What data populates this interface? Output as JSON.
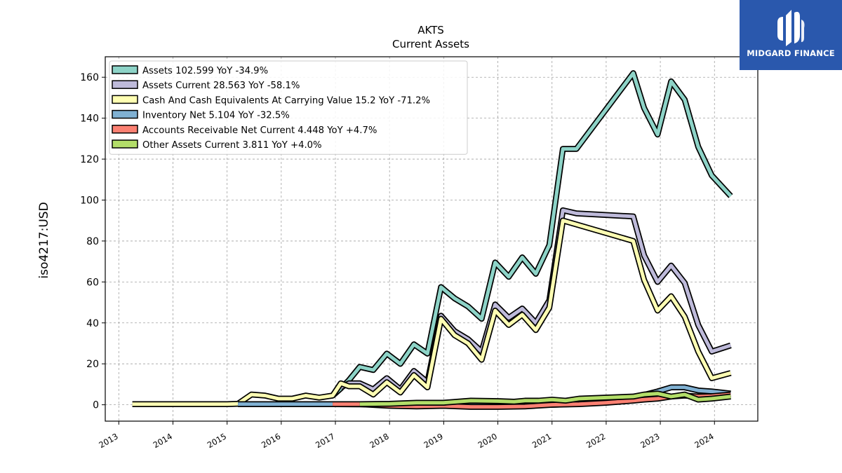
{
  "brand": {
    "name": "MIDGARD FINANCE",
    "bg": "#2a58ad"
  },
  "chart_data": {
    "type": "line",
    "title": "AKTS",
    "subtitle": "Current  Assets",
    "ylabel": "iso4217:USD",
    "xlabel": "",
    "xlim": [
      2012.75,
      2024.8
    ],
    "ylim": [
      -8,
      170
    ],
    "yticks": [
      0,
      20,
      40,
      60,
      80,
      100,
      120,
      140,
      160
    ],
    "xticks": [
      2013,
      2014,
      2015,
      2016,
      2017,
      2018,
      2019,
      2020,
      2021,
      2022,
      2023,
      2024
    ],
    "grid": true,
    "legend_position": "top-left",
    "series": [
      {
        "name": "Assets",
        "legend": "Assets  102.599 YoY -34.9%",
        "color": "#8dd3c7",
        "points": [
          [
            2016.95,
            4.5
          ],
          [
            2017.1,
            8
          ],
          [
            2017.25,
            12
          ],
          [
            2017.45,
            18.5
          ],
          [
            2017.7,
            17
          ],
          [
            2017.95,
            25
          ],
          [
            2018.2,
            20
          ],
          [
            2018.45,
            29.5
          ],
          [
            2018.7,
            25
          ],
          [
            2018.95,
            57.5
          ],
          [
            2019.2,
            52
          ],
          [
            2019.45,
            48
          ],
          [
            2019.7,
            42
          ],
          [
            2019.95,
            69.5
          ],
          [
            2020.2,
            62.5
          ],
          [
            2020.45,
            72
          ],
          [
            2020.7,
            64
          ],
          [
            2020.95,
            78
          ],
          [
            2021.2,
            125
          ],
          [
            2021.45,
            125
          ],
          [
            2022.5,
            162
          ],
          [
            2022.7,
            145
          ],
          [
            2022.95,
            132
          ],
          [
            2023.2,
            158
          ],
          [
            2023.45,
            149
          ],
          [
            2023.7,
            126
          ],
          [
            2023.95,
            112
          ],
          [
            2024.3,
            102
          ]
        ]
      },
      {
        "name": "Assets Current",
        "legend": "Assets Current  28.563 YoY -58.1%",
        "color": "#bebada",
        "points": [
          [
            2017.1,
            8.5
          ],
          [
            2017.25,
            10.5
          ],
          [
            2017.45,
            10.5
          ],
          [
            2017.7,
            7.5
          ],
          [
            2017.95,
            13
          ],
          [
            2018.2,
            7.5
          ],
          [
            2018.45,
            16.5
          ],
          [
            2018.7,
            11
          ],
          [
            2018.95,
            43.5
          ],
          [
            2019.2,
            36
          ],
          [
            2019.45,
            32
          ],
          [
            2019.7,
            26
          ],
          [
            2019.95,
            49
          ],
          [
            2020.2,
            42.5
          ],
          [
            2020.45,
            47
          ],
          [
            2020.7,
            40
          ],
          [
            2020.95,
            51
          ],
          [
            2021.2,
            95
          ],
          [
            2021.45,
            93.5
          ],
          [
            2022.5,
            92
          ],
          [
            2022.7,
            73
          ],
          [
            2022.95,
            60
          ],
          [
            2023.2,
            68
          ],
          [
            2023.45,
            59.5
          ],
          [
            2023.7,
            39
          ],
          [
            2023.95,
            26
          ],
          [
            2024.3,
            29
          ]
        ]
      },
      {
        "name": "Cash And Cash Equivalents At Carrying Value",
        "legend": "Cash And Cash Equivalents At Carrying Value  15.2 YoY -71.2%",
        "color": "#ffffb3",
        "points": [
          [
            2013.25,
            0.3
          ],
          [
            2015.0,
            0.3
          ],
          [
            2015.2,
            0.5
          ],
          [
            2015.45,
            5
          ],
          [
            2015.7,
            4.5
          ],
          [
            2015.95,
            3
          ],
          [
            2016.2,
            3
          ],
          [
            2016.45,
            4.5
          ],
          [
            2016.7,
            3.5
          ],
          [
            2016.95,
            4.5
          ],
          [
            2017.1,
            10.5
          ],
          [
            2017.25,
            9
          ],
          [
            2017.45,
            9
          ],
          [
            2017.7,
            5
          ],
          [
            2017.95,
            11
          ],
          [
            2018.2,
            6
          ],
          [
            2018.45,
            14.5
          ],
          [
            2018.7,
            8.5
          ],
          [
            2018.95,
            42
          ],
          [
            2019.2,
            34
          ],
          [
            2019.45,
            30
          ],
          [
            2019.7,
            22
          ],
          [
            2019.95,
            46
          ],
          [
            2020.2,
            39
          ],
          [
            2020.45,
            44
          ],
          [
            2020.7,
            36.5
          ],
          [
            2020.95,
            47.5
          ],
          [
            2021.2,
            90
          ],
          [
            2022.5,
            80
          ],
          [
            2022.7,
            61
          ],
          [
            2022.95,
            46
          ],
          [
            2023.2,
            53
          ],
          [
            2023.45,
            43
          ],
          [
            2023.7,
            26
          ],
          [
            2023.95,
            13
          ],
          [
            2024.3,
            15.5
          ]
        ]
      },
      {
        "name": "Inventory Net",
        "legend": "Inventory Net  5.104 YoY -32.5%",
        "color": "#80b1d3",
        "points": [
          [
            2015.2,
            0.3
          ],
          [
            2016.95,
            0.3
          ],
          [
            2017.5,
            0.2
          ],
          [
            2018.5,
            -0.3
          ],
          [
            2019.5,
            -0.3
          ],
          [
            2020.5,
            -0.3
          ],
          [
            2021.0,
            0
          ],
          [
            2021.5,
            0.5
          ],
          [
            2022.0,
            2
          ],
          [
            2022.5,
            3.5
          ],
          [
            2022.95,
            6.5
          ],
          [
            2023.2,
            8.5
          ],
          [
            2023.45,
            8.5
          ],
          [
            2023.7,
            7
          ],
          [
            2023.95,
            6.5
          ],
          [
            2024.3,
            5.5
          ]
        ]
      },
      {
        "name": "Accounts Receivable Net Current",
        "legend": "Accounts Receivable Net Current  4.448 YoY +4.7%",
        "color": "#fb8072",
        "points": [
          [
            2016.95,
            0.3
          ],
          [
            2017.45,
            0.3
          ],
          [
            2018.0,
            -0.5
          ],
          [
            2018.5,
            -0.8
          ],
          [
            2019.0,
            -0.5
          ],
          [
            2019.5,
            -1
          ],
          [
            2020.0,
            -1
          ],
          [
            2020.5,
            -0.8
          ],
          [
            2021.0,
            0
          ],
          [
            2021.5,
            0.3
          ],
          [
            2022.0,
            1
          ],
          [
            2022.5,
            2
          ],
          [
            2022.7,
            2.5
          ],
          [
            2022.95,
            3
          ],
          [
            2023.2,
            4
          ],
          [
            2023.45,
            4.5
          ],
          [
            2023.7,
            4
          ],
          [
            2023.95,
            4.2
          ],
          [
            2024.3,
            5
          ]
        ]
      },
      {
        "name": "Other Assets Current",
        "legend": "Other Assets Current  3.811 YoY +4.0%",
        "color": "#b3de69",
        "points": [
          [
            2017.45,
            0.3
          ],
          [
            2018.0,
            0.5
          ],
          [
            2018.5,
            1
          ],
          [
            2019.0,
            1
          ],
          [
            2019.5,
            2
          ],
          [
            2020.0,
            1.8
          ],
          [
            2020.3,
            1.5
          ],
          [
            2020.5,
            2
          ],
          [
            2020.75,
            2
          ],
          [
            2021.0,
            2.5
          ],
          [
            2021.25,
            2
          ],
          [
            2021.5,
            3
          ],
          [
            2022.0,
            3.5
          ],
          [
            2022.5,
            4
          ],
          [
            2022.7,
            5
          ],
          [
            2022.95,
            5.5
          ],
          [
            2023.2,
            4
          ],
          [
            2023.45,
            5
          ],
          [
            2023.7,
            2.5
          ],
          [
            2023.95,
            3
          ],
          [
            2024.3,
            4
          ]
        ]
      }
    ]
  }
}
